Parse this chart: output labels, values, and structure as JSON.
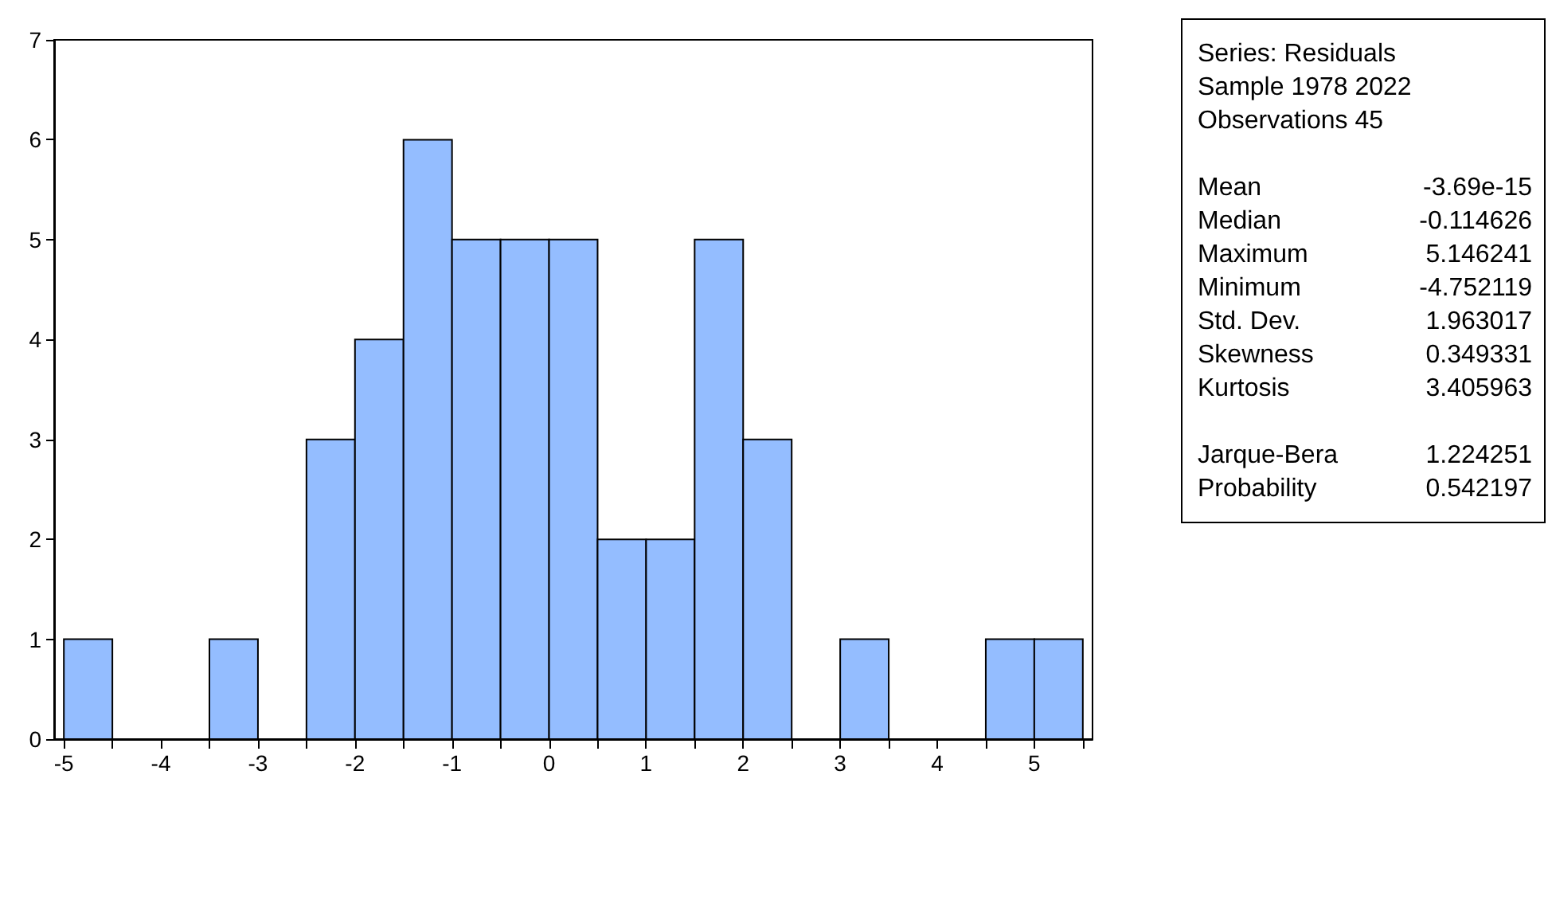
{
  "chart_data": {
    "type": "histogram",
    "bins": [
      -5,
      -4.5,
      -4,
      -3.5,
      -3,
      -2.5,
      -2,
      -1.5,
      -1,
      -0.5,
      0,
      0.5,
      1,
      1.5,
      2,
      2.5,
      3,
      3.5,
      4,
      4.5,
      5,
      5.5
    ],
    "values": [
      1,
      0,
      0,
      1,
      0,
      3,
      4,
      6,
      5,
      5,
      5,
      2,
      2,
      5,
      3,
      0,
      1,
      0,
      0,
      1,
      1
    ],
    "color": "#94bdff",
    "xlim": [
      -5.1,
      5.6
    ],
    "xticks": [
      -5,
      {
        "value": -4.5,
        "label": null
      },
      -4,
      {
        "value": -3.5,
        "label": null
      },
      -3,
      {
        "value": -2.5,
        "label": null
      },
      -2,
      {
        "value": -1.5,
        "label": null
      },
      -1,
      {
        "value": -0.5,
        "label": null
      },
      0,
      {
        "value": 0.5,
        "label": null
      },
      1,
      {
        "value": 1.5,
        "label": null
      },
      2,
      {
        "value": 2.5,
        "label": null
      },
      3,
      {
        "value": 3.5,
        "label": null
      },
      4,
      {
        "value": 4.5,
        "label": null
      },
      5,
      {
        "value": 5.5,
        "label": null
      }
    ],
    "ylim": [
      0,
      7
    ],
    "yticks": [
      0,
      1,
      2,
      3,
      4,
      5,
      6,
      7
    ],
    "grid": false,
    "annotations": [
      "Series: Residuals",
      "Sample 1978 2022",
      "Observations 45",
      "Mean",
      "-3.69e-15",
      "Median",
      "-0.114626",
      "Maximum",
      "5.146241",
      "Minimum",
      "-4.752119",
      "Std. Dev.",
      "1.963017",
      "Skewness",
      "0.349331",
      "Kurtosis",
      "3.405963",
      "Jarque-Bera",
      "1.224251",
      "Probability",
      "0.542197"
    ]
  }
}
